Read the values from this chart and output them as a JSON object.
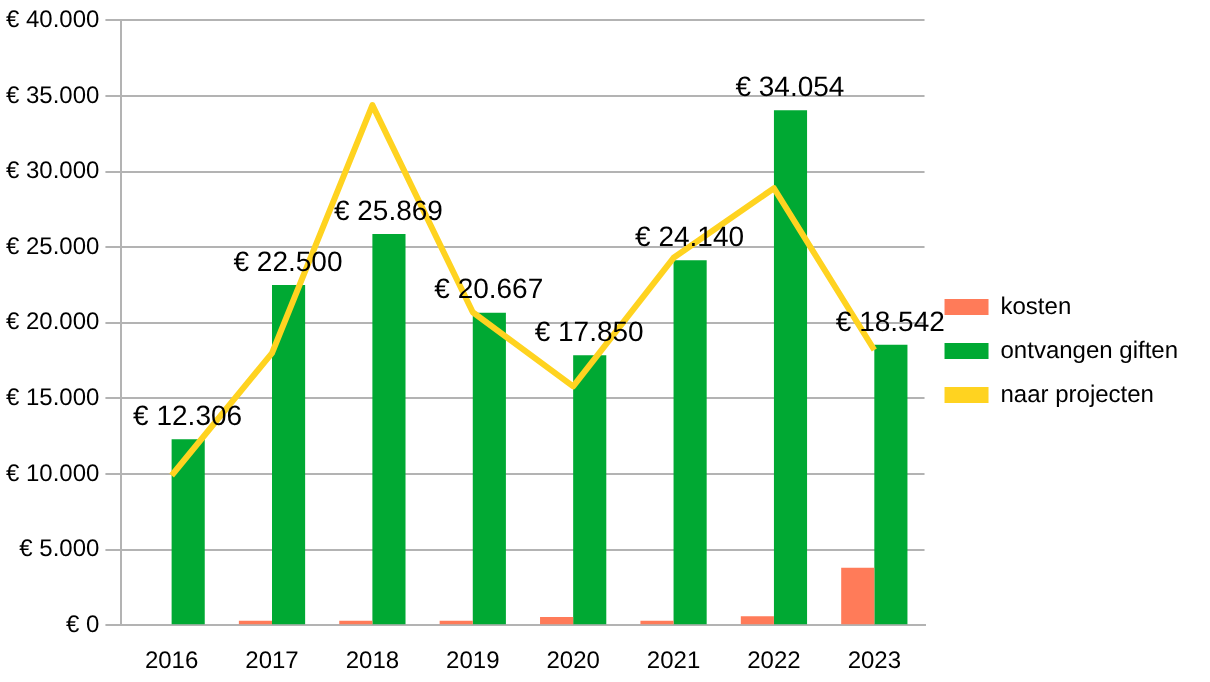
{
  "chart_data": {
    "type": "bar",
    "categories": [
      "2016",
      "2017",
      "2018",
      "2019",
      "2020",
      "2021",
      "2022",
      "2023"
    ],
    "series": [
      {
        "name": "kosten",
        "color": "#ff7b59",
        "values": [
          0,
          300,
          300,
          300,
          550,
          300,
          600,
          3800
        ]
      },
      {
        "name": "ontvangen giften",
        "color": "#00a933",
        "values": [
          12306,
          22500,
          25869,
          20667,
          17850,
          24140,
          34054,
          18542
        ],
        "value_labels": [
          "€ 12.306",
          "€ 22.500",
          "€ 25.869",
          "€ 20.667",
          "€ 17.850",
          "€ 24.140",
          "€ 34.054",
          "€ 18.542"
        ]
      },
      {
        "name": "naar projecten",
        "color": "#ffd320",
        "type": "line",
        "values": [
          9900,
          18000,
          34400,
          20700,
          15800,
          24300,
          28900,
          18200
        ]
      }
    ],
    "ylim": [
      0,
      40000
    ],
    "yticks": [
      {
        "value": 0,
        "label": "€ 0"
      },
      {
        "value": 5000,
        "label": "€ 5.000"
      },
      {
        "value": 10000,
        "label": "€ 10.000"
      },
      {
        "value": 15000,
        "label": "€ 15.000"
      },
      {
        "value": 20000,
        "label": "€ 20.000"
      },
      {
        "value": 25000,
        "label": "€ 25.000"
      },
      {
        "value": 30000,
        "label": "€ 30.000"
      },
      {
        "value": 35000,
        "label": "€ 35.000"
      },
      {
        "value": 40000,
        "label": "€ 40.000"
      }
    ],
    "grid": "y",
    "legend": "right",
    "marker": "none"
  }
}
